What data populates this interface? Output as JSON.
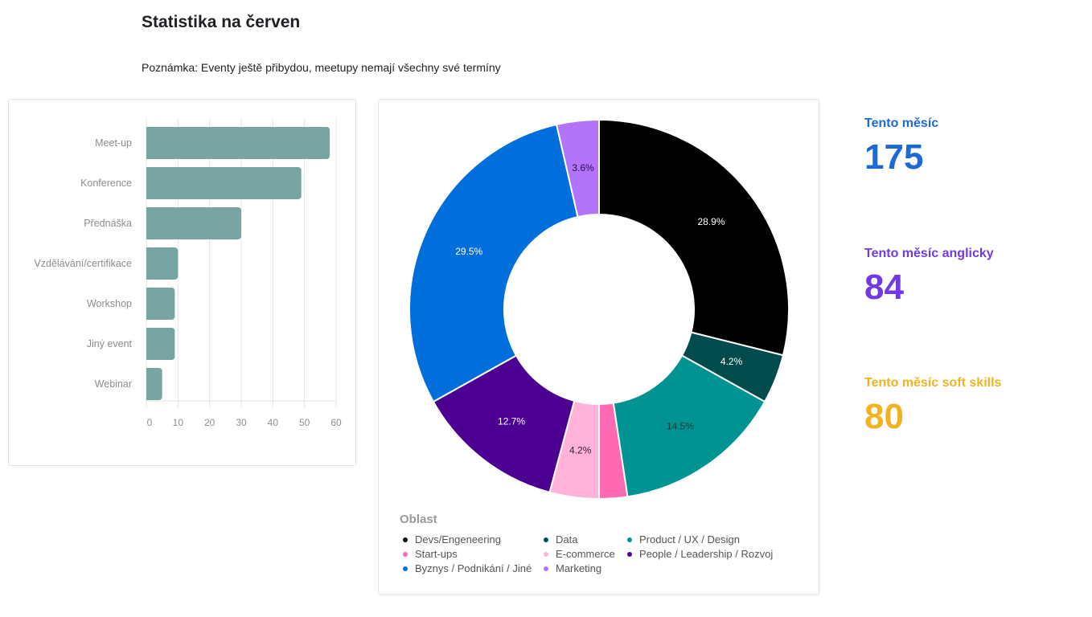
{
  "header": {
    "title": "Statistika na červen",
    "note": "Poznámka: Eventy ještě přibydou, meetupy nemají všechny své termíny"
  },
  "kpis": [
    {
      "label": "Tento měsíc",
      "value": "175",
      "color": "#1d6ad6"
    },
    {
      "label": "Tento měsíc anglicky",
      "value": "84",
      "color": "#7339e0"
    },
    {
      "label": "Tento měsíc soft skills",
      "value": "80",
      "color": "#f2b320"
    }
  ],
  "chart_data": [
    {
      "type": "bar",
      "orientation": "horizontal",
      "title": "",
      "xlabel": "",
      "ylabel": "",
      "categories": [
        "Meet-up",
        "Konference",
        "Přednáška",
        "Vzdělávání/certifikace",
        "Workshop",
        "Jiný event",
        "Webinar"
      ],
      "values": [
        58,
        49,
        30,
        10,
        9,
        9,
        5
      ],
      "xlim": [
        0,
        60
      ],
      "xticks": [
        "0",
        "10",
        "20",
        "30",
        "40",
        "50",
        "60"
      ],
      "grid": true,
      "bar_color": "#78a4a4"
    },
    {
      "type": "pie",
      "donut": true,
      "legend_title": "Oblast",
      "legend_position": "bottom-left",
      "slices": [
        {
          "label": "Devs/Engeneering",
          "value": 28.9,
          "display": "28.9%",
          "color": "#000000",
          "text_color": "#ffffff"
        },
        {
          "label": "Data",
          "value": 4.2,
          "display": "4.2%",
          "color": "#004b4b",
          "text_color": "#ffffff"
        },
        {
          "label": "Product / UX / Design",
          "value": 14.5,
          "display": "14.5%",
          "color": "#009391",
          "text_color": "#1e3a3a"
        },
        {
          "label": "Start-ups",
          "value": 2.4,
          "display": "",
          "color": "#ff69b4",
          "text_color": "#ffffff"
        },
        {
          "label": "E-commerce",
          "value": 4.2,
          "display": "4.2%",
          "color": "#ffb3da",
          "text_color": "#3a1a30"
        },
        {
          "label": "People / Leadership / Rozvoj",
          "value": 12.7,
          "display": "12.7%",
          "color": "#4b0092",
          "text_color": "#ffffff"
        },
        {
          "label": "Byznys / Podnikání / Jiné",
          "value": 29.5,
          "display": "29.5%",
          "color": "#006edb",
          "text_color": "#ffffff"
        },
        {
          "label": "Marketing",
          "value": 3.6,
          "display": "3.6%",
          "color": "#b373fa",
          "text_color": "#2a1050"
        }
      ]
    }
  ]
}
